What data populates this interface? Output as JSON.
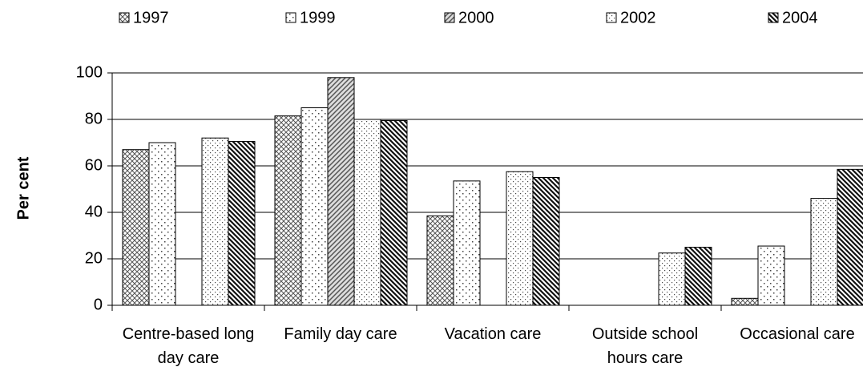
{
  "chart_data": {
    "type": "bar",
    "y_label": "Per cent",
    "categories": [
      "Centre-based long day care",
      "Family day care",
      "Vacation care",
      "Outside school hours care",
      "Occasional care"
    ],
    "series": [
      {
        "name": "1997",
        "color": "#555555",
        "values": [
          67,
          81.5,
          38.5,
          null,
          3
        ]
      },
      {
        "name": "1999",
        "color": "#444444",
        "values": [
          70,
          85,
          53.5,
          null,
          25.5
        ]
      },
      {
        "name": "2000",
        "color": "#555555",
        "values": [
          null,
          98,
          null,
          null,
          null
        ]
      },
      {
        "name": "2002",
        "color": "#444444",
        "values": [
          72,
          80,
          57.5,
          22.5,
          46
        ]
      },
      {
        "name": "2004",
        "color": "#111111",
        "values": [
          70.5,
          79.5,
          55,
          25,
          58.5
        ]
      }
    ],
    "ylim": [
      0,
      100
    ],
    "yticks": [
      0,
      20,
      40,
      60,
      80,
      100
    ],
    "grid": true
  }
}
